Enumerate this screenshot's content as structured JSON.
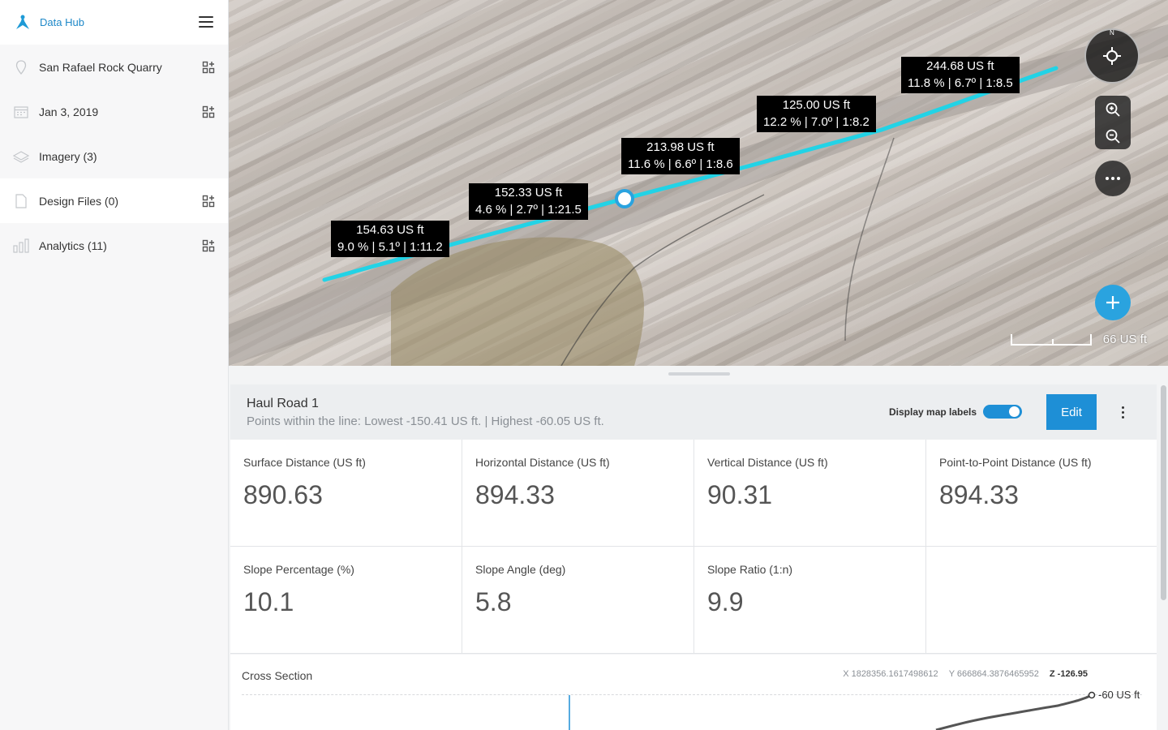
{
  "app": {
    "title": "Data Hub"
  },
  "sidebar": {
    "items": [
      {
        "label": "San Rafael Rock Quarry",
        "icon": "location-pin-icon"
      },
      {
        "label": "Jan 3, 2019",
        "icon": "calendar-icon"
      },
      {
        "label": "Imagery (3)",
        "icon": "layers-icon"
      },
      {
        "label": "Design Files (0)",
        "icon": "file-icon"
      },
      {
        "label": "Analytics (11)",
        "icon": "bar-chart-icon"
      }
    ]
  },
  "map": {
    "labels": [
      {
        "distance": "154.63 US ft",
        "slope": "9.0 % | 5.1º | 1:11.2"
      },
      {
        "distance": "152.33 US ft",
        "slope": "4.6 % | 2.7º | 1:21.5"
      },
      {
        "distance": "213.98 US ft",
        "slope": "11.6 % | 6.6º | 1:8.6"
      },
      {
        "distance": "125.00 US ft",
        "slope": "12.2 % | 7.0º | 1:8.2"
      },
      {
        "distance": "244.68 US ft",
        "slope": "11.8 % | 6.7º | 1:8.5"
      }
    ],
    "compass_north": "N",
    "scale": "66 US ft",
    "line_color": "#22d3e6",
    "accent_color": "#2aa3df"
  },
  "panel": {
    "title": "Haul Road 1",
    "subtitle": "Points within the line: Lowest -150.41 US ft. | Highest -60.05 US ft.",
    "toggle_label": "Display map labels",
    "toggle_on": true,
    "edit_label": "Edit",
    "metrics_row1": [
      {
        "label": "Surface Distance (US ft)",
        "value": "890.63"
      },
      {
        "label": "Horizontal Distance (US ft)",
        "value": "894.33"
      },
      {
        "label": "Vertical Distance (US ft)",
        "value": "90.31"
      },
      {
        "label": "Point-to-Point Distance (US ft)",
        "value": "894.33"
      }
    ],
    "metrics_row2": [
      {
        "label": "Slope Percentage (%)",
        "value": "10.1"
      },
      {
        "label": "Slope Angle (deg)",
        "value": "5.8"
      },
      {
        "label": "Slope Ratio (1:n)",
        "value": "9.9"
      },
      {
        "label": "",
        "value": ""
      }
    ],
    "cross_section": {
      "title": "Cross Section",
      "x": "X 1828356.1617498612",
      "y": "Y 666864.3876465952",
      "z": "Z -126.95",
      "elevation_label": "-60 US ft"
    }
  }
}
